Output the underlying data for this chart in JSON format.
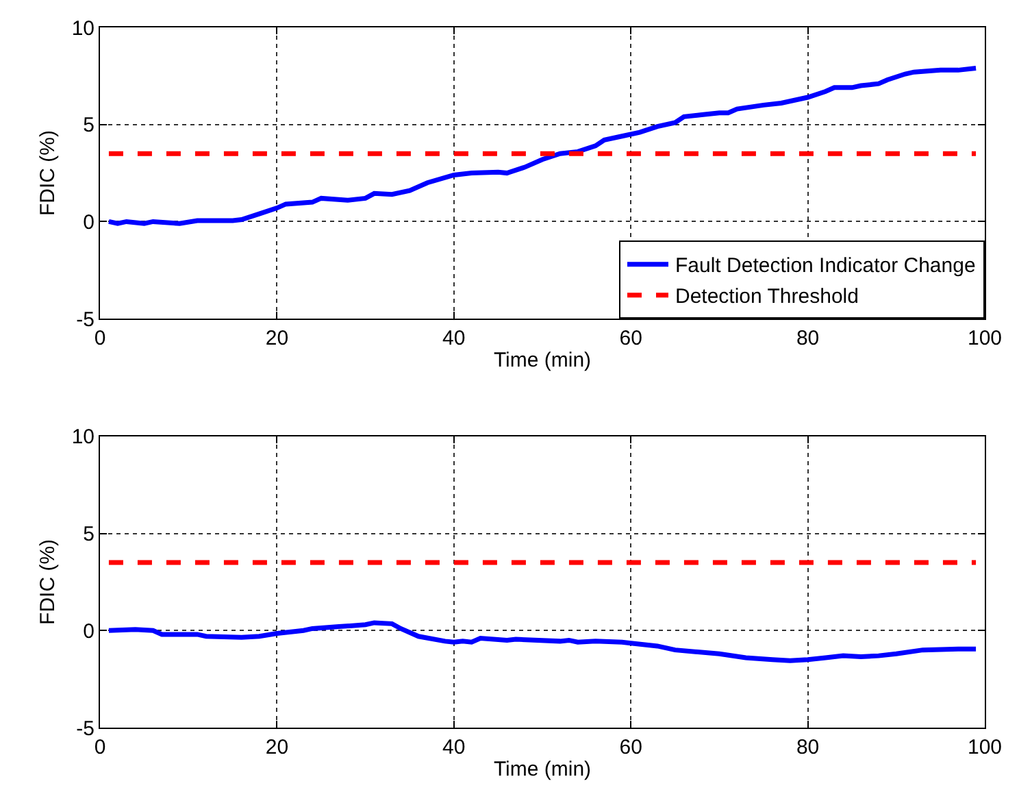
{
  "chart_data": [
    {
      "type": "line",
      "xlabel": "Time (min)",
      "ylabel": "FDIC (%)",
      "xlim": [
        0,
        100
      ],
      "xticks": [
        0,
        20,
        40,
        60,
        80,
        100
      ],
      "ylim": [
        -5,
        10
      ],
      "yticks": [
        -5,
        0,
        5,
        10
      ],
      "grid": true,
      "legend": "bottom right",
      "series": [
        {
          "name": "Fault Detection Indicator Change",
          "color": "#0000ff",
          "line_style": "solid",
          "x": [
            1,
            2,
            3,
            5,
            6,
            9,
            11,
            15,
            16,
            18,
            20,
            21,
            24,
            25,
            28,
            30,
            31,
            33,
            35,
            37,
            40,
            42,
            45,
            46,
            48,
            50,
            52,
            54,
            56,
            57,
            59,
            61,
            63,
            65,
            66,
            68,
            70,
            71,
            72,
            75,
            77,
            80,
            82,
            83,
            85,
            86,
            88,
            89,
            91,
            92,
            95,
            97,
            99
          ],
          "values": [
            0,
            -0.1,
            0,
            -0.1,
            0,
            -0.1,
            0.05,
            0.05,
            0.1,
            0.4,
            0.7,
            0.9,
            1.0,
            1.2,
            1.1,
            1.2,
            1.45,
            1.4,
            1.6,
            2.0,
            2.4,
            2.5,
            2.55,
            2.5,
            2.8,
            3.2,
            3.5,
            3.6,
            3.9,
            4.2,
            4.4,
            4.6,
            4.9,
            5.1,
            5.4,
            5.5,
            5.6,
            5.6,
            5.8,
            6.0,
            6.1,
            6.4,
            6.7,
            6.9,
            6.9,
            7.0,
            7.1,
            7.3,
            7.6,
            7.7,
            7.8,
            7.8,
            7.9
          ]
        },
        {
          "name": "Detection Threshold",
          "color": "#ff0000",
          "line_style": "dashed",
          "x": [
            1,
            99
          ],
          "values": [
            3.5,
            3.5
          ]
        }
      ]
    },
    {
      "type": "line",
      "xlabel": "Time (min)",
      "ylabel": "FDIC (%)",
      "xlim": [
        0,
        100
      ],
      "xticks": [
        0,
        20,
        40,
        60,
        80,
        100
      ],
      "ylim": [
        -5,
        10
      ],
      "yticks": [
        -5,
        0,
        5,
        10
      ],
      "grid": true,
      "series": [
        {
          "color": "#0000ff",
          "line_style": "solid",
          "x": [
            1,
            4,
            6,
            7,
            11,
            12,
            16,
            18,
            20,
            23,
            24,
            27,
            30,
            31,
            33,
            34,
            36,
            39,
            40,
            41,
            42,
            43,
            46,
            47,
            52,
            53,
            54,
            56,
            59,
            60,
            63,
            65,
            70,
            73,
            76,
            78,
            80,
            82,
            84,
            86,
            88,
            90,
            93,
            97,
            99
          ],
          "values": [
            0,
            0.05,
            0,
            -0.2,
            -0.2,
            -0.3,
            -0.35,
            -0.3,
            -0.15,
            0,
            0.1,
            0.2,
            0.3,
            0.4,
            0.35,
            0.1,
            -0.3,
            -0.55,
            -0.6,
            -0.55,
            -0.6,
            -0.4,
            -0.5,
            -0.45,
            -0.55,
            -0.5,
            -0.6,
            -0.55,
            -0.6,
            -0.65,
            -0.8,
            -1.0,
            -1.2,
            -1.4,
            -1.5,
            -1.55,
            -1.5,
            -1.4,
            -1.3,
            -1.35,
            -1.3,
            -1.2,
            -1.0,
            -0.95,
            -0.95
          ]
        },
        {
          "color": "#ff0000",
          "line_style": "dashed",
          "x": [
            1,
            99
          ],
          "values": [
            3.5,
            3.5
          ]
        }
      ]
    }
  ]
}
